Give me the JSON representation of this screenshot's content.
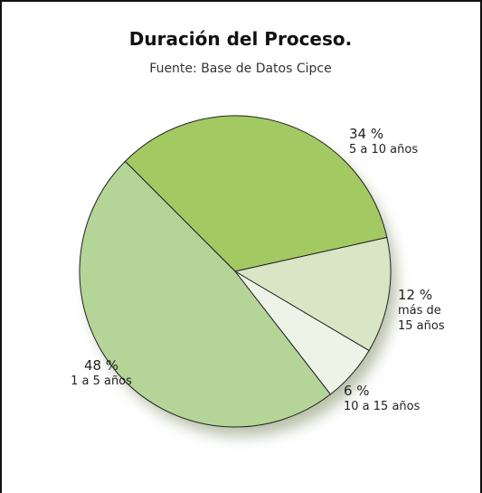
{
  "chart_data": {
    "type": "pie",
    "title": "Duración del Proceso.",
    "subtitle": "Fuente: Base de Datos Cipce",
    "categories": [
      "5 a 10 años",
      "más de 15 años",
      "10 a 15 años",
      "1 a 5 años"
    ],
    "values": [
      34,
      12,
      6,
      48
    ],
    "value_labels": [
      "34 %",
      "12 %",
      "6 %",
      "48 %"
    ],
    "colors": [
      "#a3c963",
      "#d8e6c6",
      "#eef3e8",
      "#b5d498"
    ]
  }
}
